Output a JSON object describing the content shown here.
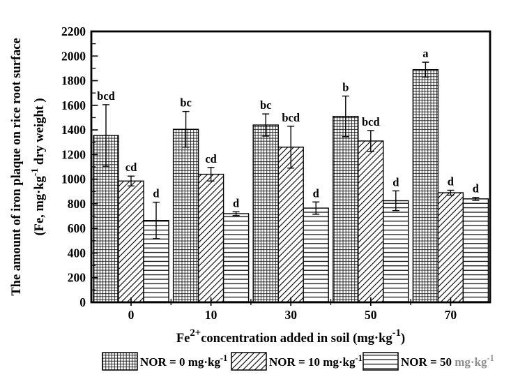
{
  "figure": {
    "background": "#ffffff",
    "ink": "#000000",
    "faded_ink": "#8f8f8f"
  },
  "chart_data": {
    "type": "bar",
    "title": "",
    "grid": false,
    "legend_position": "bottom",
    "ylim": [
      0,
      2200
    ],
    "ytick_major": 200,
    "ytick_minor": 100,
    "ylabel_line1": "The amount of iron plaque on rice root surface",
    "ylabel_line2_parts": [
      {
        "t": "(Fe, mg·kg"
      },
      {
        "t": "-1",
        "sup": true
      },
      {
        "t": " dry weight )"
      }
    ],
    "xlabel_parts": [
      {
        "t": "Fe"
      },
      {
        "t": "2+",
        "sup": true
      },
      {
        "t": "concentration added in soil (mg·kg"
      },
      {
        "t": "-1",
        "sup": true
      },
      {
        "t": ")"
      }
    ],
    "categories": [
      "0",
      "10",
      "30",
      "50",
      "70"
    ],
    "series": [
      {
        "key": "nor0",
        "pattern": "grid",
        "name_parts": [
          {
            "t": "NOR = 0 mg·kg"
          },
          {
            "t": "-1",
            "sup": true
          }
        ],
        "values": [
          1355,
          1405,
          1440,
          1510,
          1890
        ],
        "errors": [
          250,
          145,
          90,
          165,
          60
        ],
        "letters": [
          "bcd",
          "bc",
          "bc",
          "b",
          "a"
        ]
      },
      {
        "key": "nor10",
        "pattern": "diagonal",
        "name_parts": [
          {
            "t": "NOR = 10 mg·kg"
          },
          {
            "t": "-1",
            "sup": true
          }
        ],
        "values": [
          985,
          1040,
          1260,
          1310,
          890
        ],
        "errors": [
          40,
          55,
          170,
          85,
          20
        ],
        "letters": [
          "cd",
          "cd",
          "bcd",
          "bcd",
          "d"
        ]
      },
      {
        "key": "nor50",
        "pattern": "horizontal",
        "name_parts": [
          {
            "t": "NOR = 50 "
          },
          {
            "t": "mg·kg",
            "faded": true
          },
          {
            "t": "-1",
            "sup": true,
            "faded": true
          }
        ],
        "values": [
          665,
          720,
          765,
          825,
          840
        ],
        "errors": [
          148,
          15,
          50,
          80,
          12
        ],
        "letters": [
          "d",
          "d",
          "d",
          "d",
          "d"
        ]
      }
    ]
  }
}
